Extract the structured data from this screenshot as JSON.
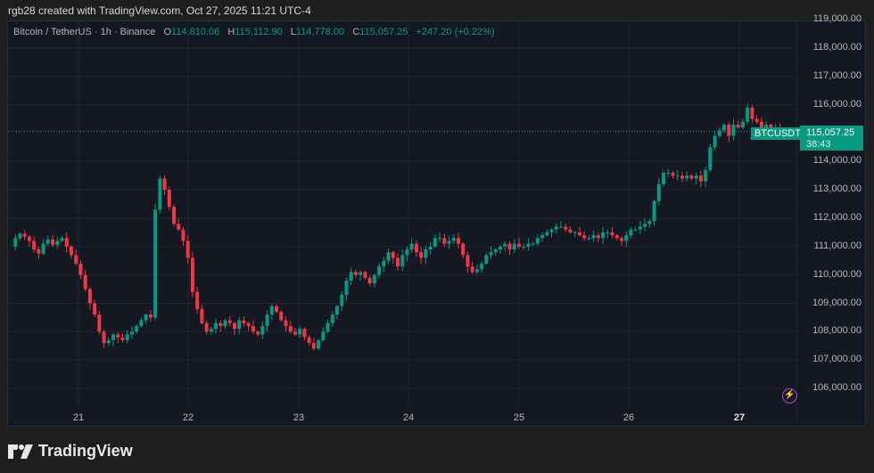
{
  "caption": "rgb28 created with TradingView.com, Oct 27, 2025 11:21 UTC-4",
  "legend": {
    "symbol": "Bitcoin / TetherUS · 1h · Binance",
    "open_label": "O",
    "open": "114,810.06",
    "high_label": "H",
    "high": "115,112.90",
    "low_label": "L",
    "low": "114,778.00",
    "close_label": "C",
    "close": "115,057.25",
    "change": "+247.20 (+0.22%)"
  },
  "price_tag": {
    "symbol": "BTCUSDT",
    "price": "115,057.25",
    "countdown": "38:43"
  },
  "logo_text": "TradingView",
  "colors": {
    "up": "#089981",
    "down": "#f23645",
    "background": "#141823",
    "grid": "#1f2430",
    "bolt": "#b63fd8"
  },
  "chart_data": {
    "type": "candlestick",
    "title": "Bitcoin / TetherUS · 1h · Binance",
    "xlabel": "",
    "ylabel": "",
    "ylim": [
      105600,
      119000
    ],
    "y_ticks": [
      "119,000.00",
      "118,000.00",
      "117,000.00",
      "116,000.00",
      "114,000.00",
      "113,000.00",
      "112,000.00",
      "111,000.00",
      "110,000.00",
      "109,000.00",
      "108,000.00",
      "107,000.00",
      "106,000.00"
    ],
    "y_tick_values": [
      119000,
      118000,
      117000,
      116000,
      114000,
      113000,
      112000,
      111000,
      110000,
      109000,
      108000,
      107000,
      106000
    ],
    "x_ticks": [
      {
        "label": "21",
        "x": 88,
        "bold": false
      },
      {
        "label": "22",
        "x": 211,
        "bold": false
      },
      {
        "label": "23",
        "x": 335,
        "bold": false
      },
      {
        "label": "24",
        "x": 458,
        "bold": false
      },
      {
        "label": "25",
        "x": 582,
        "bold": false
      },
      {
        "label": "26",
        "x": 705,
        "bold": false
      },
      {
        "label": "27",
        "x": 829,
        "bold": true
      }
    ],
    "last_price": 115057.25,
    "close_path": [
      111000,
      111300,
      111450,
      111350,
      111200,
      110900,
      110750,
      111100,
      111250,
      111050,
      111200,
      111300,
      111000,
      110700,
      110400,
      110000,
      109500,
      109000,
      108600,
      108000,
      107600,
      107700,
      107900,
      107800,
      107700,
      107900,
      108000,
      108200,
      108400,
      108600,
      108500,
      112300,
      113400,
      113000,
      112400,
      111800,
      111600,
      111200,
      110600,
      109400,
      108800,
      108300,
      108000,
      108100,
      108300,
      108200,
      108400,
      108300,
      108100,
      108400,
      108300,
      108200,
      108000,
      107900,
      108200,
      108600,
      108900,
      108700,
      108400,
      108200,
      108000,
      107900,
      108100,
      107800,
      107600,
      107400,
      107700,
      108000,
      108300,
      108600,
      108900,
      109300,
      109800,
      110100,
      110000,
      110100,
      109900,
      109700,
      110000,
      110300,
      110500,
      110800,
      110600,
      110300,
      110700,
      110900,
      111100,
      110800,
      110600,
      110900,
      111000,
      111300,
      111300,
      111100,
      111200,
      111300,
      111100,
      110700,
      110300,
      110100,
      110200,
      110400,
      110700,
      110800,
      110900,
      111000,
      111100,
      110900,
      111100,
      111000,
      111000,
      111100,
      111100,
      111300,
      111400,
      111500,
      111600,
      111700,
      111700,
      111600,
      111500,
      111500,
      111400,
      111300,
      111300,
      111400,
      111300,
      111500,
      111500,
      111400,
      111300,
      111200,
      111400,
      111600,
      111600,
      111700,
      111800,
      111900,
      112600,
      113200,
      113600,
      113600,
      113500,
      113500,
      113400,
      113500,
      113400,
      113500,
      113300,
      113700,
      114500,
      114900,
      115100,
      115300,
      114900,
      115300,
      115200,
      115400,
      115900,
      115500,
      115400,
      115200,
      115300,
      115100,
      115200,
      114900,
      115057
    ]
  }
}
